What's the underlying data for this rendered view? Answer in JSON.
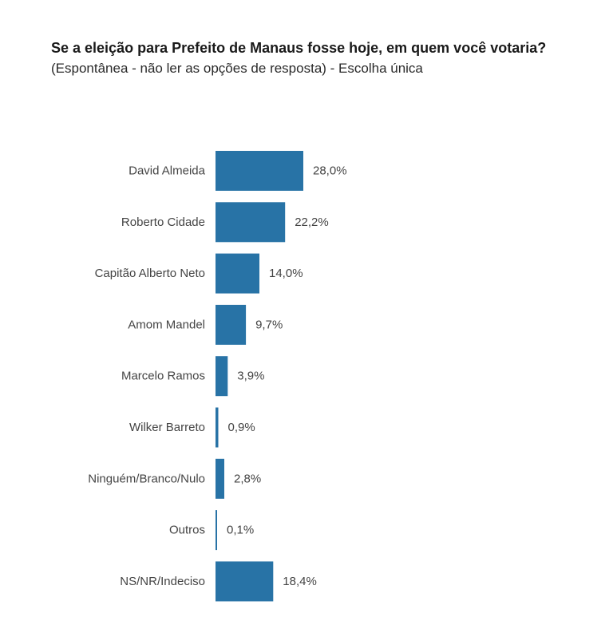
{
  "chart_data": {
    "type": "bar",
    "orientation": "horizontal",
    "title": "Se a eleição para Prefeito de Manaus fosse hoje, em quem você votaria?",
    "subtitle": "(Espontânea - não ler as opções de resposta) - Escolha única",
    "categories": [
      "David Almeida",
      "Roberto Cidade",
      "Capitão Alberto Neto",
      "Amom Mandel",
      "Marcelo Ramos",
      "Wilker Barreto",
      "Ninguém/Branco/Nulo",
      "Outros",
      "NS/NR/Indeciso"
    ],
    "values": [
      28.0,
      22.2,
      14.0,
      9.7,
      3.9,
      0.9,
      2.8,
      0.1,
      18.4
    ],
    "value_labels": [
      "28,0%",
      "22,2%",
      "14,0%",
      "9,7%",
      "3,9%",
      "0,9%",
      "2,8%",
      "0,1%",
      "18,4%"
    ],
    "xlim": [
      0,
      100
    ],
    "grid": false,
    "bar_color": "#2873a6"
  }
}
